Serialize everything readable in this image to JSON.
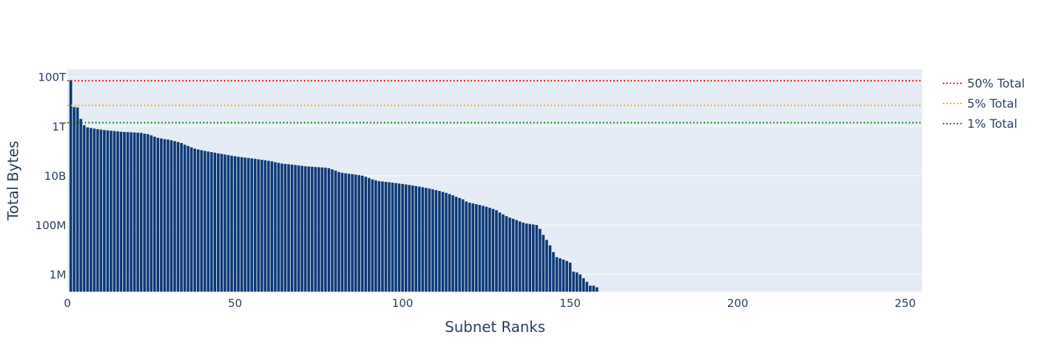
{
  "chart_data": {
    "type": "bar",
    "xlabel": "Subnet Ranks",
    "ylabel": "Total Bytes",
    "y_scale": "log",
    "xlim": [
      0,
      255
    ],
    "ylim": [
      200000,
      200000000000000
    ],
    "x_ticks": [
      {
        "value": 0,
        "label": "0"
      },
      {
        "value": 50,
        "label": "50"
      },
      {
        "value": 100,
        "label": "100"
      },
      {
        "value": 150,
        "label": "150"
      },
      {
        "value": 200,
        "label": "200"
      },
      {
        "value": 250,
        "label": "250"
      }
    ],
    "y_ticks": [
      {
        "value": 1000000,
        "label": "1M"
      },
      {
        "value": 100000000,
        "label": "100M"
      },
      {
        "value": 10000000000,
        "label": "10B"
      },
      {
        "value": 1000000000000,
        "label": "1T"
      },
      {
        "value": 100000000000000,
        "label": "100T"
      }
    ],
    "grid": true,
    "legend_position": "right",
    "bar_color": "#0d3a77",
    "plot_bg": "#e5ecf6",
    "values": [
      73000000000000,
      6000000000000,
      5800000000000,
      2000000000000,
      1100000000000,
      900000000000,
      850000000000,
      800000000000,
      760000000000,
      730000000000,
      700000000000,
      680000000000,
      660000000000,
      640000000000,
      620000000000,
      600000000000,
      590000000000,
      580000000000,
      570000000000,
      560000000000,
      550000000000,
      540000000000,
      500000000000,
      480000000000,
      430000000000,
      380000000000,
      340000000000,
      320000000000,
      300000000000,
      290000000000,
      270000000000,
      250000000000,
      230000000000,
      210000000000,
      180000000000,
      160000000000,
      140000000000,
      125000000000,
      115000000000,
      108000000000,
      100000000000,
      95000000000,
      90000000000,
      85000000000,
      80000000000,
      76000000000,
      72000000000,
      68000000000,
      64000000000,
      61000000000,
      58000000000,
      56000000000,
      54000000000,
      52000000000,
      50000000000,
      48000000000,
      46000000000,
      44000000000,
      42000000000,
      40000000000,
      38000000000,
      35000000000,
      33000000000,
      31000000000,
      30000000000,
      29000000000,
      28000000000,
      27000000000,
      26000000000,
      25000000000,
      24000000000,
      23500000000,
      23000000000,
      22500000000,
      22000000000,
      21500000000,
      21000000000,
      20000000000,
      18000000000,
      16000000000,
      14000000000,
      13000000000,
      12500000000,
      12000000000,
      11500000000,
      11000000000,
      10500000000,
      10000000000,
      9000000000,
      8000000000,
      7000000000,
      6500000000,
      6000000000,
      5800000000,
      5600000000,
      5400000000,
      5200000000,
      5000000000,
      4800000000,
      4600000000,
      4400000000,
      4200000000,
      4000000000,
      3800000000,
      3600000000,
      3400000000,
      3200000000,
      3000000000,
      2800000000,
      2600000000,
      2400000000,
      2200000000,
      2000000000,
      1800000000,
      1600000000,
      1400000000,
      1250000000,
      1100000000,
      900000000,
      800000000,
      750000000,
      700000000,
      650000000,
      600000000,
      550000000,
      500000000,
      450000000,
      400000000,
      320000000,
      270000000,
      230000000,
      200000000,
      180000000,
      160000000,
      140000000,
      125000000,
      115000000,
      110000000,
      105000000,
      100000000,
      70000000,
      40000000,
      25000000,
      15000000,
      8000000,
      5000000,
      4500000,
      4000000,
      3500000,
      3000000,
      1300000,
      1200000,
      1000000,
      700000,
      500000,
      350000,
      350000,
      300000
    ],
    "series": [
      {
        "name": "50% Total",
        "value": 70000000000000,
        "color": "#ff0000",
        "dash": "dot"
      },
      {
        "name": "5% Total",
        "value": 7000000000000,
        "color": "#ffa500",
        "dash": "dot"
      },
      {
        "name": "1% Total",
        "value": 1400000000000,
        "color": "#008000",
        "dash": "dot"
      }
    ]
  }
}
